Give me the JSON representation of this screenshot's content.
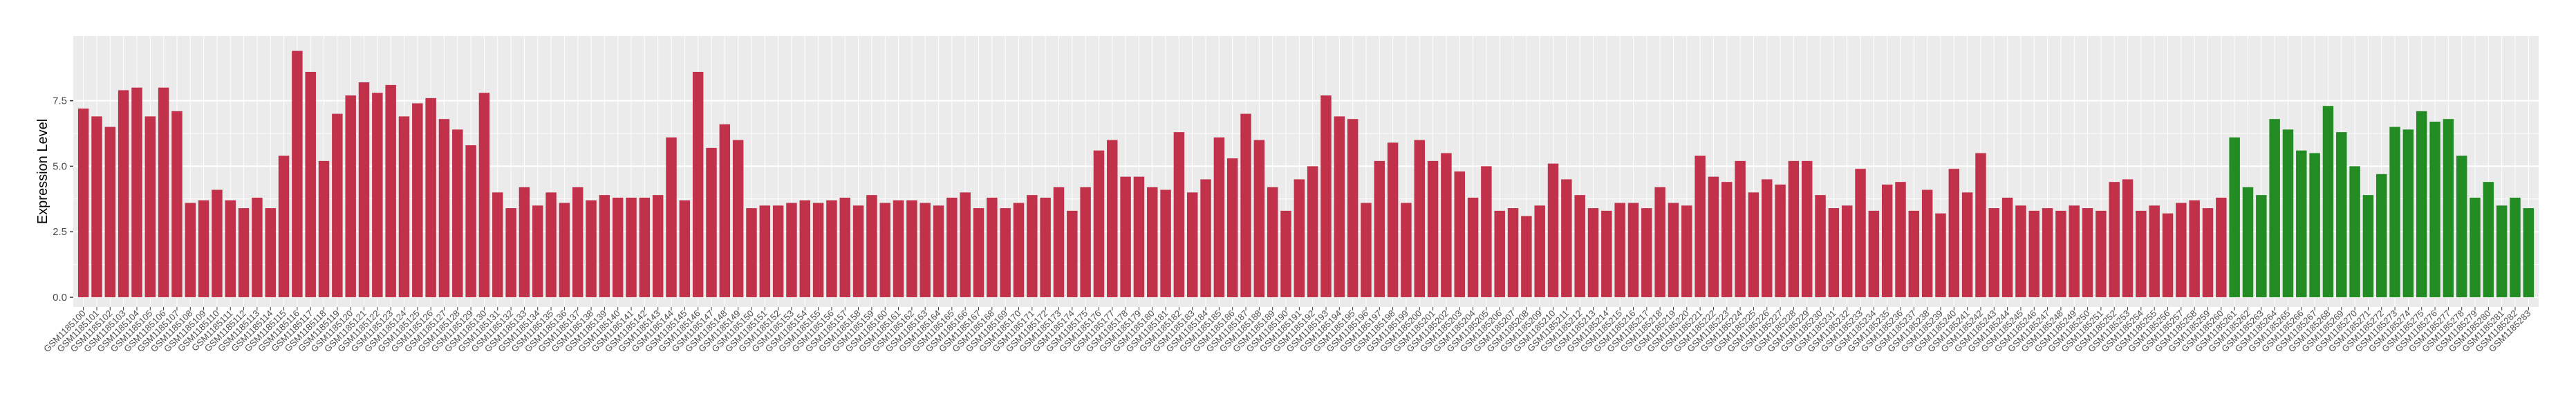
{
  "chart_data": {
    "type": "bar",
    "y_label": "Expression Level",
    "categories": [
      "GSM1185100",
      "GSM1185101",
      "GSM1185102",
      "GSM1185103",
      "GSM1185104",
      "GSM1185105",
      "GSM1185106",
      "GSM1185107",
      "GSM1185108",
      "GSM1185109",
      "GSM1185110",
      "GSM1185111",
      "GSM1185112",
      "GSM1185113",
      "GSM1185114",
      "GSM1185115",
      "GSM1185116",
      "GSM1185117",
      "GSM1185118",
      "GSM1185119",
      "GSM1185120",
      "GSM1185121",
      "GSM1185122",
      "GSM1185123",
      "GSM1185124",
      "GSM1185125",
      "GSM1185126",
      "GSM1185127",
      "GSM1185128",
      "GSM1185129",
      "GSM1185130",
      "GSM1185131",
      "GSM1185132",
      "GSM1185133",
      "GSM1185134",
      "GSM1185135",
      "GSM1185136",
      "GSM1185137",
      "GSM1185138",
      "GSM1185139",
      "GSM1185140",
      "GSM1185141",
      "GSM1185142",
      "GSM1185143",
      "GSM1185144",
      "GSM1185145",
      "GSM1185146",
      "GSM1185147",
      "GSM1185148",
      "GSM1185149",
      "GSM1185150",
      "GSM1185151",
      "GSM1185152",
      "GSM1185153",
      "GSM1185154",
      "GSM1185155",
      "GSM1185156",
      "GSM1185157",
      "GSM1185158",
      "GSM1185159",
      "GSM1185160",
      "GSM1185161",
      "GSM1185162",
      "GSM1185163",
      "GSM1185164",
      "GSM1185165",
      "GSM1185166",
      "GSM1185167",
      "GSM1185168",
      "GSM1185169",
      "GSM1185170",
      "GSM1185171",
      "GSM1185172",
      "GSM1185173",
      "GSM1185174",
      "GSM1185175",
      "GSM1185176",
      "GSM1185177",
      "GSM1185178",
      "GSM1185179",
      "GSM1185180",
      "GSM1185181",
      "GSM1185182",
      "GSM1185183",
      "GSM1185184",
      "GSM1185185",
      "GSM1185186",
      "GSM1185187",
      "GSM1185188",
      "GSM1185189",
      "GSM1185190",
      "GSM1185191",
      "GSM1185192",
      "GSM1185193",
      "GSM1185194",
      "GSM1185195",
      "GSM1185196",
      "GSM1185197",
      "GSM1185198",
      "GSM1185199",
      "GSM1185200",
      "GSM1185201",
      "GSM1185202",
      "GSM1185203",
      "GSM1185204",
      "GSM1185205",
      "GSM1185206",
      "GSM1185207",
      "GSM1185208",
      "GSM1185209",
      "GSM1185210",
      "GSM1185211",
      "GSM1185212",
      "GSM1185213",
      "GSM1185214",
      "GSM1185215",
      "GSM1185216",
      "GSM1185217",
      "GSM1185218",
      "GSM1185219",
      "GSM1185220",
      "GSM1185221",
      "GSM1185222",
      "GSM1185223",
      "GSM1185224",
      "GSM1185225",
      "GSM1185226",
      "GSM1185227",
      "GSM1185228",
      "GSM1185229",
      "GSM1185230",
      "GSM1185231",
      "GSM1185232",
      "GSM1185233",
      "GSM1185234",
      "GSM1185235",
      "GSM1185236",
      "GSM1185237",
      "GSM1185238",
      "GSM1185239",
      "GSM1185240",
      "GSM1185241",
      "GSM1185242",
      "GSM1185243",
      "GSM1185244",
      "GSM1185245",
      "GSM1185246",
      "GSM1185247",
      "GSM1185248",
      "GSM1185249",
      "GSM1185250",
      "GSM1185251",
      "GSM1185252",
      "GSM1185253",
      "GSM1185254",
      "GSM1185255",
      "GSM1185256",
      "GSM1185257",
      "GSM1185258",
      "GSM1185259",
      "GSM1185260",
      "GSM1185261",
      "GSM1185262",
      "GSM1185263",
      "GSM1185264",
      "GSM1185265",
      "GSM1185266",
      "GSM1185267",
      "GSM1185268",
      "GSM1185269",
      "GSM1185270",
      "GSM1185271",
      "GSM1185272",
      "GSM1185273",
      "GSM1185274",
      "GSM1185275",
      "GSM1185276",
      "GSM1185277",
      "GSM1185278",
      "GSM1185279",
      "GSM1185280",
      "GSM1185281",
      "GSM1185282",
      "GSM1185283"
    ],
    "values": [
      7.2,
      6.9,
      6.5,
      7.9,
      8.0,
      6.9,
      8.0,
      7.1,
      3.6,
      3.7,
      4.1,
      3.7,
      3.4,
      3.8,
      3.4,
      5.4,
      9.4,
      8.6,
      5.2,
      7.0,
      7.7,
      8.2,
      7.8,
      8.1,
      6.9,
      7.4,
      7.6,
      6.8,
      6.4,
      5.8,
      7.8,
      4.0,
      3.4,
      4.2,
      3.5,
      4.0,
      3.6,
      4.2,
      3.7,
      3.9,
      3.8,
      3.8,
      3.8,
      3.9,
      6.1,
      3.7,
      8.6,
      5.7,
      6.6,
      6.0,
      3.4,
      3.5,
      3.5,
      3.6,
      3.7,
      3.6,
      3.7,
      3.8,
      3.5,
      3.9,
      3.6,
      3.7,
      3.7,
      3.6,
      3.5,
      3.8,
      4.0,
      3.4,
      3.8,
      3.4,
      3.6,
      3.9,
      3.8,
      4.2,
      3.3,
      4.2,
      5.6,
      6.0,
      4.6,
      4.6,
      4.2,
      4.1,
      6.3,
      4.0,
      4.5,
      6.1,
      5.3,
      7.0,
      6.0,
      4.2,
      3.3,
      4.5,
      5.0,
      7.7,
      6.9,
      6.8,
      3.6,
      5.2,
      5.9,
      3.6,
      6.0,
      5.2,
      5.5,
      4.8,
      3.8,
      5.0,
      3.3,
      3.4,
      3.1,
      3.5,
      5.1,
      4.5,
      3.9,
      3.4,
      3.3,
      3.6,
      3.6,
      3.4,
      4.2,
      3.6,
      3.5,
      5.4,
      4.6,
      4.4,
      5.2,
      4.0,
      4.5,
      4.3,
      5.2,
      5.2,
      3.9,
      3.4,
      3.5,
      4.9,
      3.3,
      4.3,
      4.4,
      3.3,
      4.1,
      3.2,
      4.9,
      4.0,
      5.5,
      3.4,
      3.8,
      3.5,
      3.3,
      3.4,
      3.3,
      3.5,
      3.4,
      3.3,
      4.4,
      4.5,
      3.3,
      3.5,
      3.2,
      3.6,
      3.7,
      3.4,
      3.8,
      6.1,
      4.2,
      3.9,
      6.8,
      6.4,
      5.6,
      5.5,
      7.3,
      6.3,
      5.0,
      3.9,
      4.7,
      6.5,
      6.4,
      7.1,
      6.7,
      6.8,
      5.4,
      3.8,
      4.4,
      3.5,
      3.8,
      3.4
    ],
    "colors": [
      "#c1324a",
      "#c1324a",
      "#c1324a",
      "#c1324a",
      "#c1324a",
      "#c1324a",
      "#c1324a",
      "#c1324a",
      "#c1324a",
      "#c1324a",
      "#c1324a",
      "#c1324a",
      "#c1324a",
      "#c1324a",
      "#c1324a",
      "#c1324a",
      "#c1324a",
      "#c1324a",
      "#c1324a",
      "#c1324a",
      "#c1324a",
      "#c1324a",
      "#c1324a",
      "#c1324a",
      "#c1324a",
      "#c1324a",
      "#c1324a",
      "#c1324a",
      "#c1324a",
      "#c1324a",
      "#c1324a",
      "#c1324a",
      "#c1324a",
      "#c1324a",
      "#c1324a",
      "#c1324a",
      "#c1324a",
      "#c1324a",
      "#c1324a",
      "#c1324a",
      "#c1324a",
      "#c1324a",
      "#c1324a",
      "#c1324a",
      "#c1324a",
      "#c1324a",
      "#c1324a",
      "#c1324a",
      "#c1324a",
      "#c1324a",
      "#c1324a",
      "#c1324a",
      "#c1324a",
      "#c1324a",
      "#c1324a",
      "#c1324a",
      "#c1324a",
      "#c1324a",
      "#c1324a",
      "#c1324a",
      "#c1324a",
      "#c1324a",
      "#c1324a",
      "#c1324a",
      "#c1324a",
      "#c1324a",
      "#c1324a",
      "#c1324a",
      "#c1324a",
      "#c1324a",
      "#c1324a",
      "#c1324a",
      "#c1324a",
      "#c1324a",
      "#c1324a",
      "#c1324a",
      "#c1324a",
      "#c1324a",
      "#c1324a",
      "#c1324a",
      "#c1324a",
      "#c1324a",
      "#c1324a",
      "#c1324a",
      "#c1324a",
      "#c1324a",
      "#c1324a",
      "#c1324a",
      "#c1324a",
      "#c1324a",
      "#c1324a",
      "#c1324a",
      "#c1324a",
      "#c1324a",
      "#c1324a",
      "#c1324a",
      "#c1324a",
      "#c1324a",
      "#c1324a",
      "#c1324a",
      "#c1324a",
      "#c1324a",
      "#c1324a",
      "#c1324a",
      "#c1324a",
      "#c1324a",
      "#c1324a",
      "#c1324a",
      "#c1324a",
      "#c1324a",
      "#c1324a",
      "#c1324a",
      "#c1324a",
      "#c1324a",
      "#c1324a",
      "#c1324a",
      "#c1324a",
      "#c1324a",
      "#c1324a",
      "#c1324a",
      "#c1324a",
      "#c1324a",
      "#c1324a",
      "#c1324a",
      "#c1324a",
      "#c1324a",
      "#c1324a",
      "#c1324a",
      "#c1324a",
      "#c1324a",
      "#c1324a",
      "#c1324a",
      "#c1324a",
      "#c1324a",
      "#c1324a",
      "#c1324a",
      "#c1324a",
      "#c1324a",
      "#c1324a",
      "#c1324a",
      "#c1324a",
      "#c1324a",
      "#c1324a",
      "#c1324a",
      "#c1324a",
      "#c1324a",
      "#c1324a",
      "#c1324a",
      "#c1324a",
      "#c1324a",
      "#c1324a",
      "#c1324a",
      "#c1324a",
      "#c1324a",
      "#c1324a",
      "#c1324a",
      "#c1324a",
      "#c1324a",
      "#c1324a",
      "#c1324a",
      "#c1324a",
      "#228b22",
      "#228b22",
      "#228b22",
      "#228b22",
      "#228b22",
      "#228b22",
      "#228b22",
      "#228b22",
      "#228b22",
      "#228b22",
      "#228b22",
      "#228b22",
      "#228b22",
      "#228b22",
      "#228b22",
      "#228b22",
      "#228b22",
      "#228b22",
      "#228b22",
      "#228b22",
      "#228b22",
      "#228b22",
      "#228b22"
    ],
    "ylim": [
      -0.37,
      9.97
    ],
    "yticks": [
      {
        "value": 0,
        "label": "0.0"
      },
      {
        "value": 2.5,
        "label": "2.5"
      },
      {
        "value": 5,
        "label": "5.0"
      },
      {
        "value": 7.5,
        "label": "7.5"
      }
    ],
    "grid": true
  }
}
